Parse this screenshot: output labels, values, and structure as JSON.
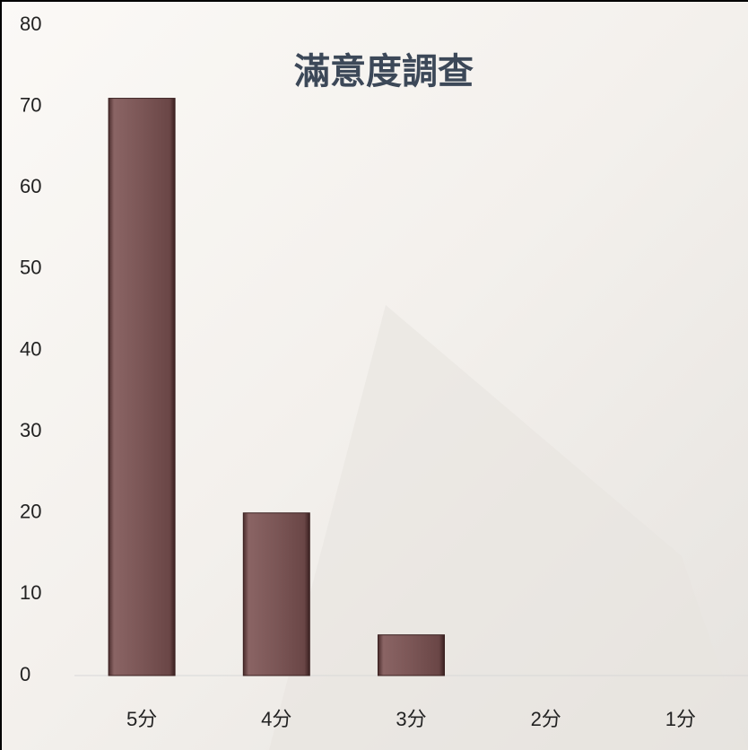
{
  "chart_data": {
    "type": "bar",
    "title": "滿意度調查",
    "categories": [
      "5分",
      "4分",
      "3分",
      "2分",
      "1分"
    ],
    "values": [
      71,
      20,
      5,
      0,
      0
    ],
    "color": "#7b5656",
    "ylim": [
      0,
      80
    ],
    "yticks": [
      0,
      10,
      20,
      30,
      40,
      50,
      60,
      70,
      80
    ],
    "grid": false
  }
}
